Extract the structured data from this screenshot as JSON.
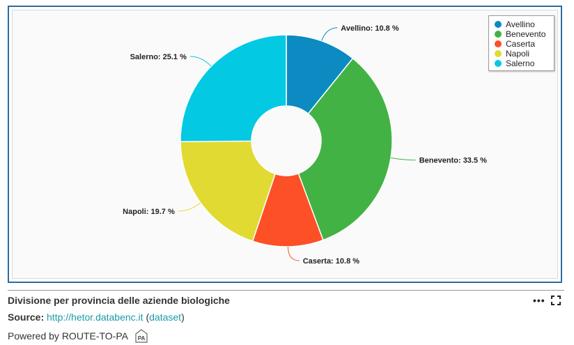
{
  "chart_data": {
    "type": "pie",
    "donut": true,
    "categories": [
      "Avellino",
      "Benevento",
      "Caserta",
      "Napoli",
      "Salerno"
    ],
    "values": [
      10.8,
      33.5,
      10.8,
      19.7,
      25.1
    ],
    "labels": [
      "Avellino: 10.8 %",
      "Benevento: 33.5 %",
      "Caserta: 10.8 %",
      "Napoli: 19.7 %",
      "Salerno: 25.1 %"
    ],
    "colors": [
      "#0b8bc1",
      "#43b244",
      "#fd5027",
      "#e1da32",
      "#04c9e3"
    ],
    "legend": "top-right",
    "title": ""
  },
  "caption": "Divisione per provincia delle aziende biologiche",
  "source": {
    "label": "Source:",
    "link": "http://hetor.databenc.it",
    "open_paren": " (",
    "dataset": "dataset",
    "close_paren": ")"
  },
  "powered_by": "Powered by ROUTE-TO-PA",
  "logo_text": "PA",
  "icons": {
    "more": "more-options-icon",
    "fullscreen": "fullscreen-icon"
  }
}
